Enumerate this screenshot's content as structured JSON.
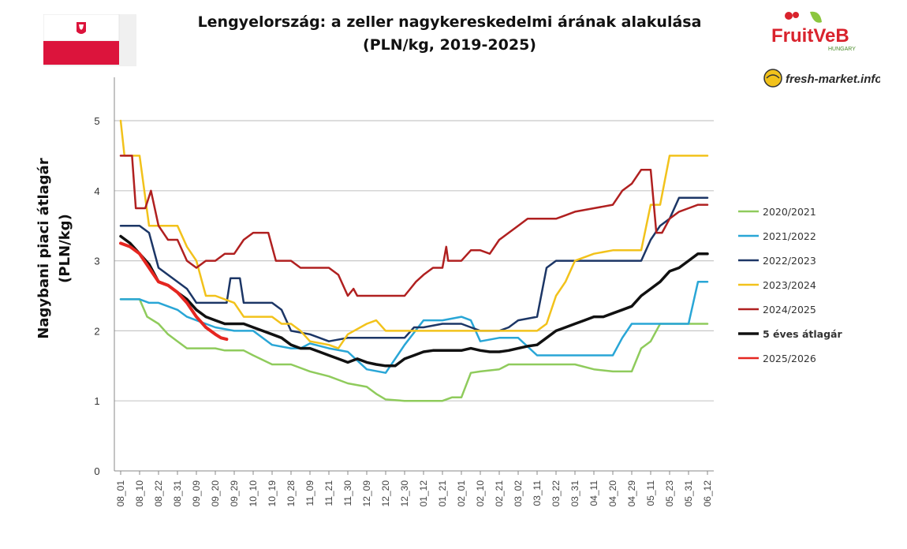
{
  "header": {
    "title_line1": "Lengyelország: a zeller nagykereskedelmi árának alakulása",
    "title_line2": "(PLN/kg, 2019-2025)"
  },
  "logos": {
    "fruitveb_text": "FruitVeB",
    "fruitveb_sub": "HUNGARY",
    "freshmarket_text": "fresh-market.info"
  },
  "colors": {
    "grid": "#c8c8c8",
    "axis": "#888888",
    "flag_white": "#ffffff",
    "flag_red": "#dc143c"
  },
  "chart_data": {
    "type": "line",
    "title": "Lengyelország: a zeller nagykereskedelmi árának alakulása",
    "subtitle": "(PLN/kg, 2019-2025)",
    "xlabel": "",
    "ylabel_line1": "Nagybani piaci átlagár",
    "ylabel_line2": "(PLN/kg)",
    "ylim": [
      0,
      5
    ],
    "y_ticks": [
      "0",
      "1",
      "2",
      "3",
      "4",
      "5"
    ],
    "categories": [
      "08_01",
      "08_10",
      "08_22",
      "08_31",
      "09_09",
      "09_20",
      "09_29",
      "10_10",
      "10_19",
      "10_28",
      "11_09",
      "11_21",
      "11_30",
      "12_09",
      "12_20",
      "12_30",
      "01_12",
      "01_21",
      "02_01",
      "02_10",
      "02_21",
      "03_02",
      "03_11",
      "03_22",
      "03_31",
      "04_11",
      "04_20",
      "04_29",
      "05_11",
      "05_23",
      "05_31",
      "06_12"
    ],
    "grid": true,
    "legend_position": "right",
    "series": [
      {
        "name": "2020/2021",
        "color": "#8fcb5c",
        "width": 2.5,
        "points": [
          [
            0,
            2.45
          ],
          [
            1,
            2.45
          ],
          [
            1.4,
            2.2
          ],
          [
            2,
            2.1
          ],
          [
            2.5,
            1.95
          ],
          [
            3,
            1.85
          ],
          [
            3.5,
            1.75
          ],
          [
            4.5,
            1.75
          ],
          [
            5,
            1.75
          ],
          [
            5.5,
            1.72
          ],
          [
            6.5,
            1.72
          ],
          [
            7,
            1.65
          ],
          [
            8,
            1.52
          ],
          [
            9,
            1.52
          ],
          [
            10,
            1.42
          ],
          [
            11,
            1.35
          ],
          [
            12,
            1.25
          ],
          [
            13,
            1.2
          ],
          [
            13.5,
            1.1
          ],
          [
            14,
            1.02
          ],
          [
            15,
            1.0
          ],
          [
            16,
            1.0
          ],
          [
            17,
            1.0
          ],
          [
            17.5,
            1.05
          ],
          [
            18,
            1.05
          ],
          [
            18.5,
            1.4
          ],
          [
            19,
            1.42
          ],
          [
            20,
            1.45
          ],
          [
            20.5,
            1.52
          ],
          [
            21,
            1.52
          ],
          [
            22,
            1.52
          ],
          [
            23,
            1.52
          ],
          [
            24,
            1.52
          ],
          [
            25,
            1.45
          ],
          [
            26,
            1.42
          ],
          [
            27,
            1.42
          ],
          [
            27.5,
            1.75
          ],
          [
            28,
            1.85
          ],
          [
            28.5,
            2.1
          ],
          [
            30,
            2.1
          ],
          [
            31,
            2.1
          ]
        ]
      },
      {
        "name": "2021/2022",
        "color": "#29a6d6",
        "width": 2.5,
        "points": [
          [
            0,
            2.45
          ],
          [
            1,
            2.45
          ],
          [
            1.5,
            2.4
          ],
          [
            2,
            2.4
          ],
          [
            3,
            2.3
          ],
          [
            3.5,
            2.2
          ],
          [
            4,
            2.15
          ],
          [
            4.5,
            2.1
          ],
          [
            5,
            2.05
          ],
          [
            6,
            2.0
          ],
          [
            7,
            2.0
          ],
          [
            8,
            1.8
          ],
          [
            9,
            1.75
          ],
          [
            9.5,
            1.75
          ],
          [
            10,
            1.82
          ],
          [
            11,
            1.75
          ],
          [
            12,
            1.7
          ],
          [
            13,
            1.45
          ],
          [
            14,
            1.4
          ],
          [
            15,
            1.8
          ],
          [
            16,
            2.15
          ],
          [
            17,
            2.15
          ],
          [
            18,
            2.2
          ],
          [
            18.5,
            2.15
          ],
          [
            19,
            1.85
          ],
          [
            20,
            1.9
          ],
          [
            21,
            1.9
          ],
          [
            22,
            1.65
          ],
          [
            23,
            1.65
          ],
          [
            24,
            1.65
          ],
          [
            25,
            1.65
          ],
          [
            26,
            1.65
          ],
          [
            26.5,
            1.9
          ],
          [
            27,
            2.1
          ],
          [
            28,
            2.1
          ],
          [
            29,
            2.1
          ],
          [
            30,
            2.1
          ],
          [
            30.5,
            2.7
          ],
          [
            31,
            2.7
          ]
        ]
      },
      {
        "name": "2022/2023",
        "color": "#1c3666",
        "width": 2.5,
        "points": [
          [
            0,
            3.5
          ],
          [
            1,
            3.5
          ],
          [
            1.5,
            3.4
          ],
          [
            2,
            2.9
          ],
          [
            3,
            2.7
          ],
          [
            3.5,
            2.6
          ],
          [
            4,
            2.4
          ],
          [
            4.5,
            2.4
          ],
          [
            5,
            2.4
          ],
          [
            5.6,
            2.4
          ],
          [
            5.8,
            2.75
          ],
          [
            6.3,
            2.75
          ],
          [
            6.5,
            2.4
          ],
          [
            8,
            2.4
          ],
          [
            8.5,
            2.3
          ],
          [
            9,
            2.0
          ],
          [
            10,
            1.95
          ],
          [
            11,
            1.85
          ],
          [
            12,
            1.9
          ],
          [
            13,
            1.9
          ],
          [
            14,
            1.9
          ],
          [
            15,
            1.9
          ],
          [
            15.5,
            2.05
          ],
          [
            16,
            2.05
          ],
          [
            17,
            2.1
          ],
          [
            18,
            2.1
          ],
          [
            18.5,
            2.05
          ],
          [
            19,
            2.0
          ],
          [
            20,
            2.0
          ],
          [
            20.5,
            2.05
          ],
          [
            21,
            2.15
          ],
          [
            22,
            2.2
          ],
          [
            22.5,
            2.9
          ],
          [
            23,
            3.0
          ],
          [
            24,
            3.0
          ],
          [
            25,
            3.0
          ],
          [
            26,
            3.0
          ],
          [
            27,
            3.0
          ],
          [
            27.5,
            3.0
          ],
          [
            28,
            3.3
          ],
          [
            28.5,
            3.5
          ],
          [
            29,
            3.6
          ],
          [
            29.5,
            3.9
          ],
          [
            30,
            3.9
          ],
          [
            31,
            3.9
          ]
        ]
      },
      {
        "name": "2023/2024",
        "color": "#f2c21b",
        "width": 2.5,
        "points": [
          [
            0,
            5.0
          ],
          [
            0.2,
            4.5
          ],
          [
            1,
            4.5
          ],
          [
            1.5,
            3.5
          ],
          [
            3,
            3.5
          ],
          [
            3.5,
            3.2
          ],
          [
            4,
            3.0
          ],
          [
            4.5,
            2.5
          ],
          [
            5,
            2.5
          ],
          [
            6,
            2.4
          ],
          [
            6.5,
            2.2
          ],
          [
            8,
            2.2
          ],
          [
            8.5,
            2.1
          ],
          [
            9,
            2.1
          ],
          [
            9.5,
            2.0
          ],
          [
            10,
            1.85
          ],
          [
            11,
            1.8
          ],
          [
            11.5,
            1.75
          ],
          [
            12,
            1.95
          ],
          [
            13,
            2.1
          ],
          [
            13.5,
            2.15
          ],
          [
            14,
            2.0
          ],
          [
            15,
            2.0
          ],
          [
            16,
            2.0
          ],
          [
            17,
            2.0
          ],
          [
            18,
            2.0
          ],
          [
            19,
            2.0
          ],
          [
            20,
            2.0
          ],
          [
            21,
            2.0
          ],
          [
            22,
            2.0
          ],
          [
            22.5,
            2.1
          ],
          [
            23,
            2.5
          ],
          [
            23.5,
            2.7
          ],
          [
            24,
            3.0
          ],
          [
            25,
            3.1
          ],
          [
            26,
            3.15
          ],
          [
            27,
            3.15
          ],
          [
            27.5,
            3.15
          ],
          [
            28,
            3.8
          ],
          [
            28.5,
            3.8
          ],
          [
            29,
            4.5
          ],
          [
            30,
            4.5
          ],
          [
            31,
            4.5
          ]
        ]
      },
      {
        "name": "2024/2025",
        "color": "#b02020",
        "width": 2.5,
        "points": [
          [
            0,
            4.5
          ],
          [
            0.6,
            4.5
          ],
          [
            0.8,
            3.75
          ],
          [
            1.3,
            3.75
          ],
          [
            1.6,
            4.0
          ],
          [
            2,
            3.5
          ],
          [
            2.5,
            3.3
          ],
          [
            3,
            3.3
          ],
          [
            3.5,
            3.0
          ],
          [
            4,
            2.9
          ],
          [
            4.5,
            3.0
          ],
          [
            5,
            3.0
          ],
          [
            5.5,
            3.1
          ],
          [
            6,
            3.1
          ],
          [
            6.5,
            3.3
          ],
          [
            7,
            3.4
          ],
          [
            7.8,
            3.4
          ],
          [
            8.2,
            3.0
          ],
          [
            9,
            3.0
          ],
          [
            9.5,
            2.9
          ],
          [
            10,
            2.9
          ],
          [
            11,
            2.9
          ],
          [
            11.5,
            2.8
          ],
          [
            12,
            2.5
          ],
          [
            12.3,
            2.6
          ],
          [
            12.5,
            2.5
          ],
          [
            13,
            2.5
          ],
          [
            14,
            2.5
          ],
          [
            15,
            2.5
          ],
          [
            15.3,
            2.6
          ],
          [
            15.6,
            2.7
          ],
          [
            16,
            2.8
          ],
          [
            16.5,
            2.9
          ],
          [
            17,
            2.9
          ],
          [
            17.2,
            3.2
          ],
          [
            17.3,
            3.0
          ],
          [
            18,
            3.0
          ],
          [
            18.5,
            3.15
          ],
          [
            19,
            3.15
          ],
          [
            19.5,
            3.1
          ],
          [
            20,
            3.3
          ],
          [
            20.5,
            3.4
          ],
          [
            21,
            3.5
          ],
          [
            21.5,
            3.6
          ],
          [
            22,
            3.6
          ],
          [
            23,
            3.6
          ],
          [
            23.5,
            3.65
          ],
          [
            24,
            3.7
          ],
          [
            25,
            3.75
          ],
          [
            26,
            3.8
          ],
          [
            26.5,
            4.0
          ],
          [
            27,
            4.1
          ],
          [
            27.5,
            4.3
          ],
          [
            28,
            4.3
          ],
          [
            28.3,
            3.4
          ],
          [
            28.6,
            3.4
          ],
          [
            29,
            3.6
          ],
          [
            29.5,
            3.7
          ],
          [
            30,
            3.75
          ],
          [
            30.5,
            3.8
          ],
          [
            31,
            3.8
          ]
        ]
      },
      {
        "name": "5 éves átlagár",
        "color": "#111111",
        "width": 3.5,
        "points": [
          [
            0,
            3.35
          ],
          [
            0.5,
            3.25
          ],
          [
            1,
            3.1
          ],
          [
            1.5,
            2.95
          ],
          [
            2,
            2.7
          ],
          [
            2.5,
            2.65
          ],
          [
            3,
            2.55
          ],
          [
            3.5,
            2.45
          ],
          [
            4,
            2.3
          ],
          [
            4.5,
            2.2
          ],
          [
            5,
            2.15
          ],
          [
            5.5,
            2.1
          ],
          [
            6,
            2.1
          ],
          [
            6.5,
            2.1
          ],
          [
            7,
            2.05
          ],
          [
            7.5,
            2.0
          ],
          [
            8,
            1.95
          ],
          [
            8.5,
            1.9
          ],
          [
            9,
            1.8
          ],
          [
            9.5,
            1.75
          ],
          [
            10,
            1.75
          ],
          [
            10.5,
            1.7
          ],
          [
            11,
            1.65
          ],
          [
            11.5,
            1.6
          ],
          [
            12,
            1.55
          ],
          [
            12.5,
            1.6
          ],
          [
            13,
            1.55
          ],
          [
            13.5,
            1.52
          ],
          [
            14,
            1.5
          ],
          [
            14.5,
            1.5
          ],
          [
            15,
            1.6
          ],
          [
            15.5,
            1.65
          ],
          [
            16,
            1.7
          ],
          [
            16.5,
            1.72
          ],
          [
            17,
            1.72
          ],
          [
            18,
            1.72
          ],
          [
            18.5,
            1.75
          ],
          [
            19,
            1.72
          ],
          [
            19.5,
            1.7
          ],
          [
            20,
            1.7
          ],
          [
            20.5,
            1.72
          ],
          [
            21,
            1.75
          ],
          [
            21.5,
            1.78
          ],
          [
            22,
            1.8
          ],
          [
            22.5,
            1.9
          ],
          [
            23,
            2.0
          ],
          [
            23.5,
            2.05
          ],
          [
            24,
            2.1
          ],
          [
            24.5,
            2.15
          ],
          [
            25,
            2.2
          ],
          [
            25.5,
            2.2
          ],
          [
            26,
            2.25
          ],
          [
            26.5,
            2.3
          ],
          [
            27,
            2.35
          ],
          [
            27.5,
            2.5
          ],
          [
            28,
            2.6
          ],
          [
            28.5,
            2.7
          ],
          [
            29,
            2.85
          ],
          [
            29.5,
            2.9
          ],
          [
            30,
            3.0
          ],
          [
            30.5,
            3.1
          ],
          [
            31,
            3.1
          ]
        ]
      },
      {
        "name": "2025/2026",
        "color": "#e52620",
        "width": 4,
        "points": [
          [
            0,
            3.25
          ],
          [
            0.5,
            3.2
          ],
          [
            1,
            3.1
          ],
          [
            1.5,
            2.9
          ],
          [
            2,
            2.7
          ],
          [
            2.5,
            2.65
          ],
          [
            3,
            2.55
          ],
          [
            3.5,
            2.4
          ],
          [
            4,
            2.2
          ],
          [
            4.5,
            2.05
          ],
          [
            5,
            1.95
          ],
          [
            5.3,
            1.9
          ],
          [
            5.6,
            1.88
          ]
        ]
      }
    ]
  }
}
